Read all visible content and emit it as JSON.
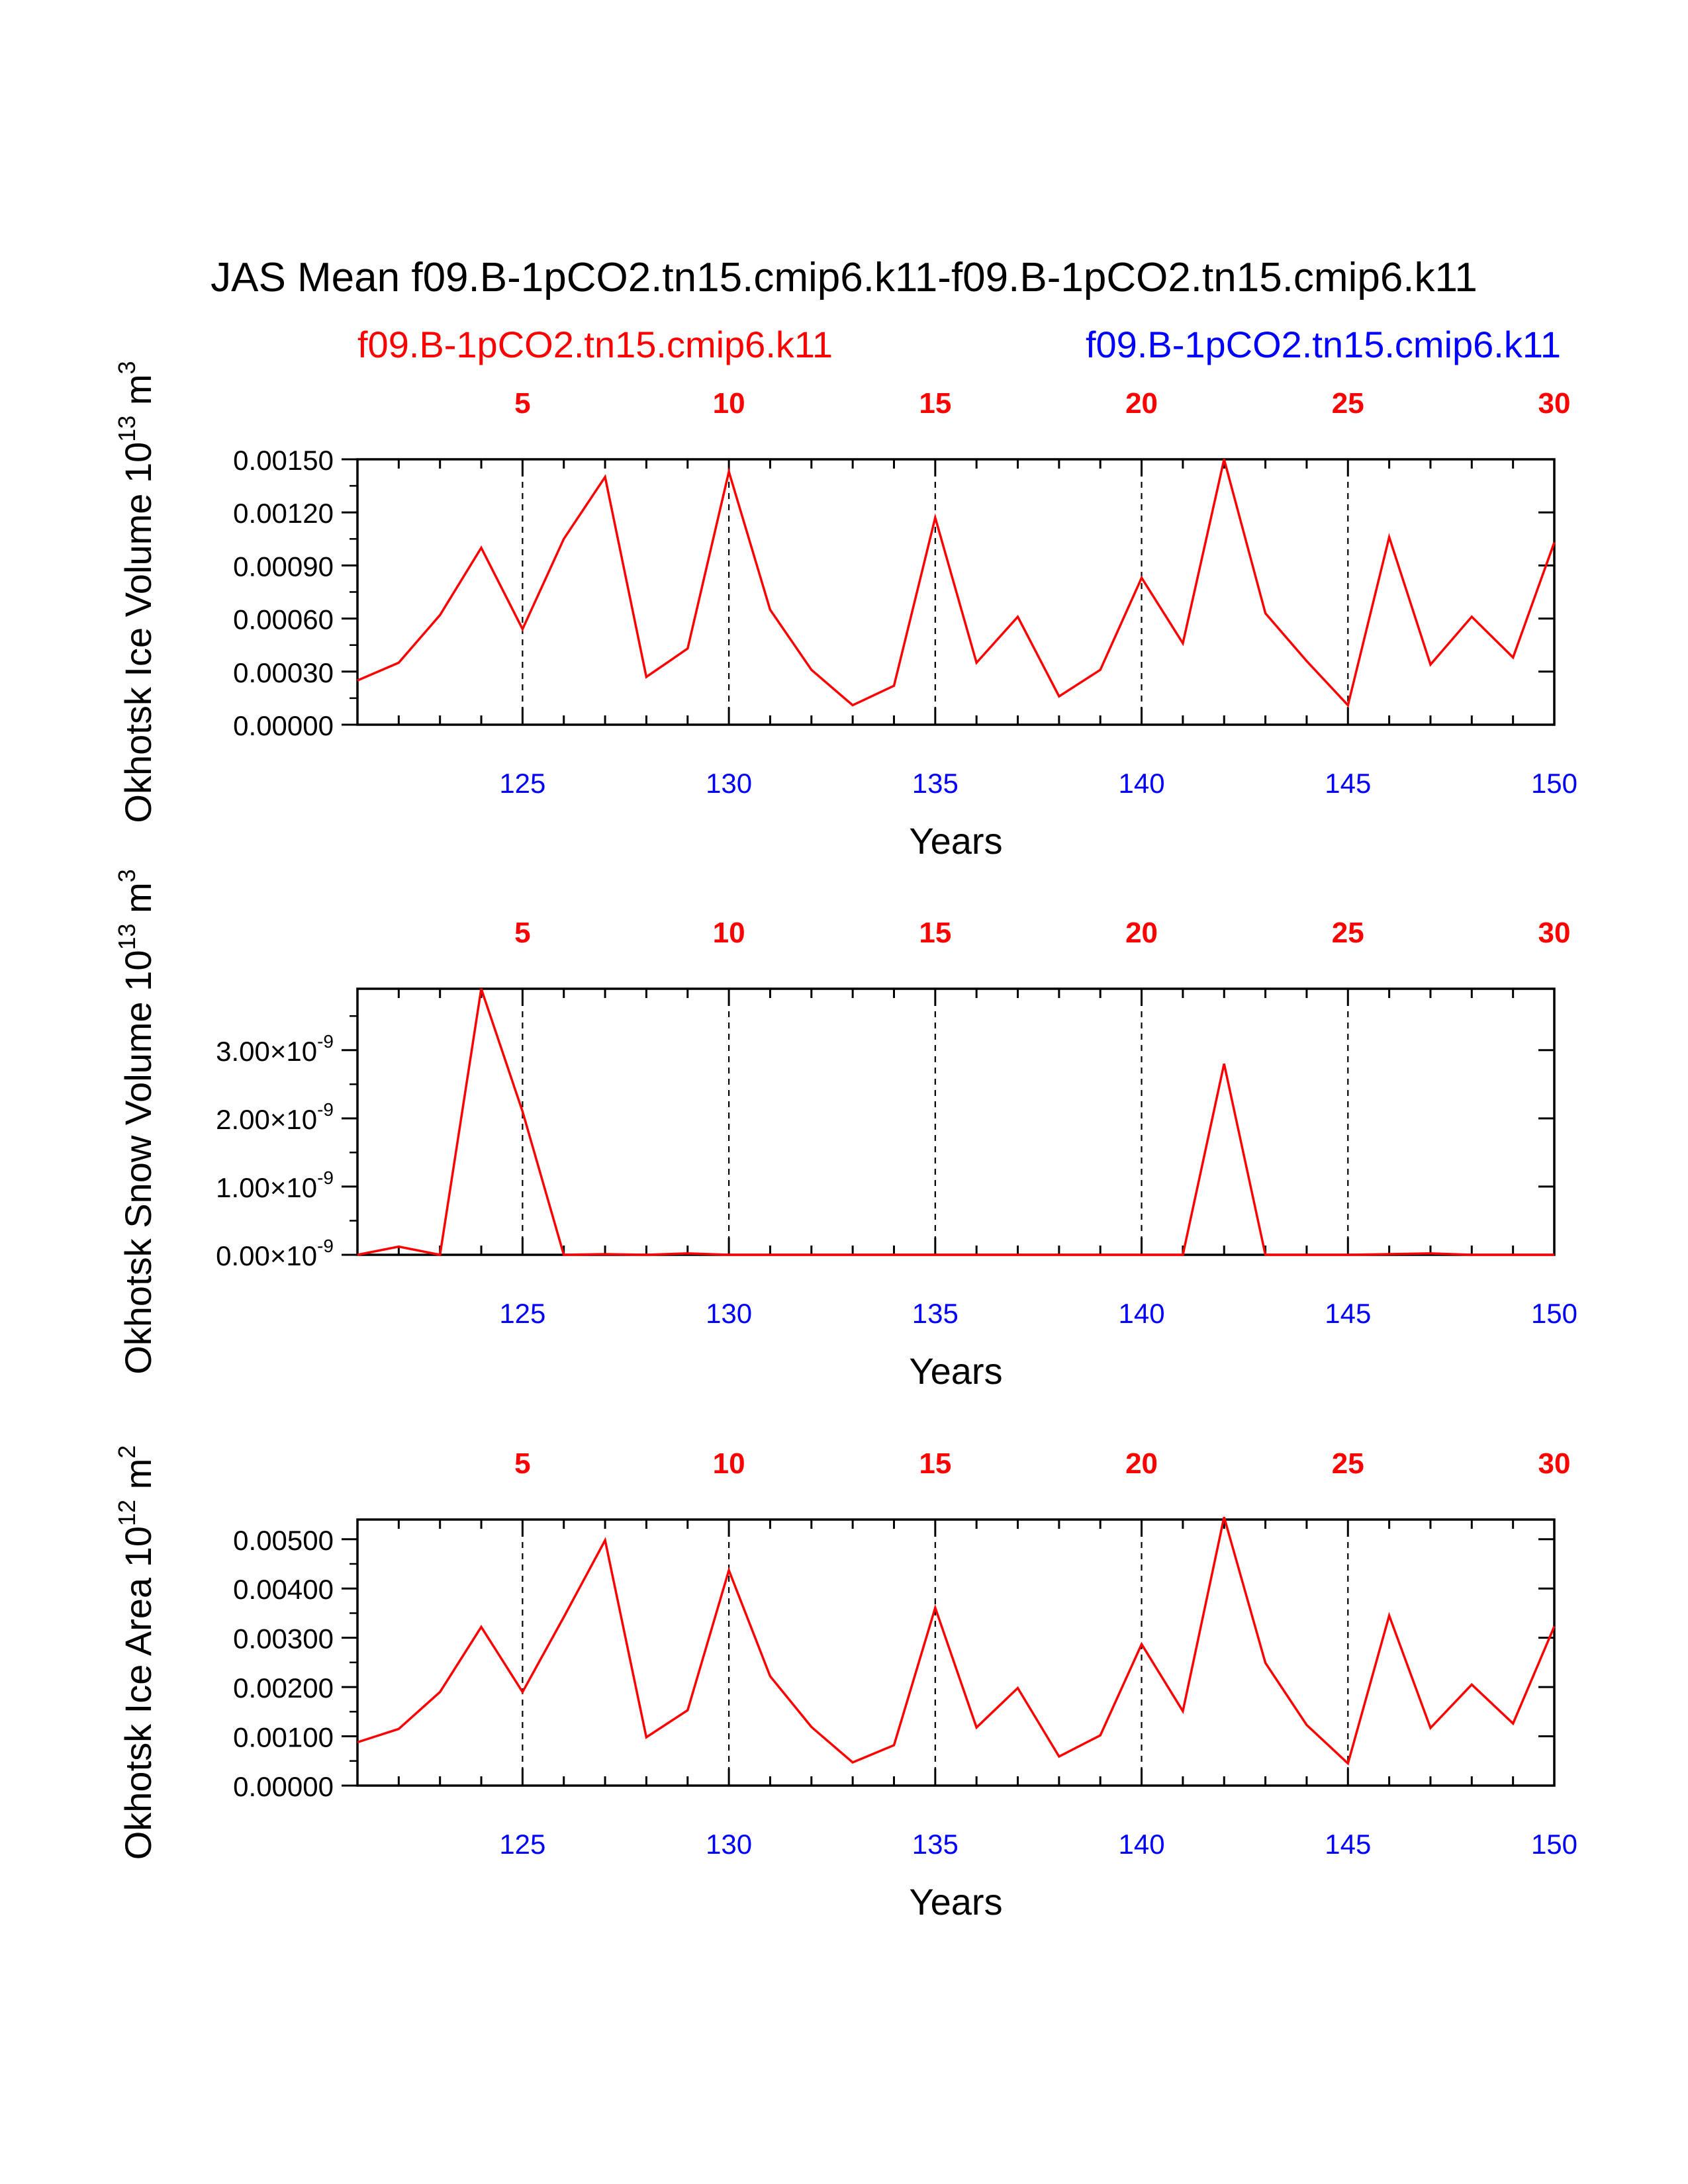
{
  "title": "JAS Mean f09.B-1pCO2.tn15.cmip6.k11-f09.B-1pCO2.tn15.cmip6.k11",
  "case_left": "f09.B-1pCO2.tn15.cmip6.k11",
  "case_right": "f09.B-1pCO2.tn15.cmip6.k11",
  "colors": {
    "series": "#ff0000",
    "top_axis": "#ff0000",
    "bottom_axis": "#0000ff",
    "text": "#000000"
  },
  "chart_data": [
    {
      "type": "line",
      "id": "ice-volume",
      "ylabel": "Okhotsk Ice Volume",
      "yunit_base": "10",
      "yunit_exp": "13",
      "yunit_unit": "m",
      "yunit_unit_exp": "3",
      "xlabel": "Years",
      "x": [
        121,
        122,
        123,
        124,
        125,
        126,
        127,
        128,
        129,
        130,
        131,
        132,
        133,
        134,
        135,
        136,
        137,
        138,
        139,
        140,
        141,
        142,
        143,
        144,
        145,
        146,
        147,
        148,
        149,
        150
      ],
      "values": [
        0.00025,
        0.00035,
        0.00062,
        0.001,
        0.00054,
        0.00105,
        0.0014,
        0.00027,
        0.00043,
        0.00143,
        0.00065,
        0.00031,
        0.00011,
        0.00022,
        0.00117,
        0.00035,
        0.00061,
        0.00016,
        0.00031,
        0.00083,
        0.00046,
        0.0015,
        0.00063,
        0.00036,
        0.00011,
        0.00106,
        0.00034,
        0.00061,
        0.00038,
        0.00103
      ],
      "xlim": [
        121,
        150
      ],
      "ylim": [
        0,
        0.0015
      ],
      "yticks": [
        0,
        0.0003,
        0.0006,
        0.0009,
        0.0012,
        0.0015
      ],
      "ytick_labels": [
        "0.00000",
        "0.00030",
        "0.00060",
        "0.00090",
        "0.00120",
        "0.00150"
      ],
      "xticks_bottom": [
        125,
        130,
        135,
        140,
        145,
        150
      ],
      "xtick_labels_bottom": [
        "125",
        "130",
        "135",
        "140",
        "145",
        "150"
      ],
      "xticks_top_labels": [
        "5",
        "10",
        "15",
        "20",
        "25",
        "30"
      ]
    },
    {
      "type": "line",
      "id": "snow-volume",
      "ylabel": "Okhotsk Snow Volume",
      "yunit_base": "10",
      "yunit_exp": "13",
      "yunit_unit": "m",
      "yunit_unit_exp": "3",
      "xlabel": "Years",
      "x": [
        121,
        122,
        123,
        124,
        125,
        126,
        127,
        128,
        129,
        130,
        131,
        132,
        133,
        134,
        135,
        136,
        137,
        138,
        139,
        140,
        141,
        142,
        143,
        144,
        145,
        146,
        147,
        148,
        149,
        150
      ],
      "values": [
        0.0,
        1.2e-10,
        0.0,
        3.9e-09,
        2.1e-09,
        0.0,
        1e-11,
        0.0,
        2e-11,
        0.0,
        0.0,
        0.0,
        0.0,
        0.0,
        0.0,
        0.0,
        0.0,
        0.0,
        0.0,
        0.0,
        0.0,
        2.8e-09,
        0.0,
        0.0,
        0.0,
        1e-11,
        2e-11,
        0.0,
        0.0,
        0.0
      ],
      "xlim": [
        121,
        150
      ],
      "ylim": [
        0,
        3.9e-09
      ],
      "yticks": [
        0,
        1e-09,
        2e-09,
        3e-09
      ],
      "ytick_labels": [
        {
          "mantissa": "0.00",
          "power": "-9"
        },
        {
          "mantissa": "1.00",
          "power": "-9"
        },
        {
          "mantissa": "2.00",
          "power": "-9"
        },
        {
          "mantissa": "3.00",
          "power": "-9"
        }
      ],
      "ytick_times": "×10",
      "xticks_bottom": [
        125,
        130,
        135,
        140,
        145,
        150
      ],
      "xtick_labels_bottom": [
        "125",
        "130",
        "135",
        "140",
        "145",
        "150"
      ],
      "xticks_top_labels": [
        "5",
        "10",
        "15",
        "20",
        "25",
        "30"
      ]
    },
    {
      "type": "line",
      "id": "ice-area",
      "ylabel": "Okhotsk Ice Area",
      "yunit_base": "10",
      "yunit_exp": "12",
      "yunit_unit": "m",
      "yunit_unit_exp": "2",
      "xlabel": "Years",
      "x": [
        121,
        122,
        123,
        124,
        125,
        126,
        127,
        128,
        129,
        130,
        131,
        132,
        133,
        134,
        135,
        136,
        137,
        138,
        139,
        140,
        141,
        142,
        143,
        144,
        145,
        146,
        147,
        148,
        149,
        150
      ],
      "values": [
        0.00088,
        0.00115,
        0.0019,
        0.00322,
        0.0019,
        0.00342,
        0.00498,
        0.00098,
        0.00153,
        0.00437,
        0.00222,
        0.00119,
        0.00047,
        0.00082,
        0.00361,
        0.00118,
        0.00198,
        0.00059,
        0.00102,
        0.00287,
        0.00151,
        0.00545,
        0.00249,
        0.00123,
        0.00045,
        0.00345,
        0.00117,
        0.00205,
        0.00126,
        0.00323
      ],
      "xlim": [
        121,
        150
      ],
      "ylim": [
        0,
        0.0054
      ],
      "yticks": [
        0,
        0.001,
        0.002,
        0.003,
        0.004,
        0.005
      ],
      "ytick_labels": [
        "0.00000",
        "0.00100",
        "0.00200",
        "0.00300",
        "0.00400",
        "0.00500"
      ],
      "xticks_bottom": [
        125,
        130,
        135,
        140,
        145,
        150
      ],
      "xtick_labels_bottom": [
        "125",
        "130",
        "135",
        "140",
        "145",
        "150"
      ],
      "xticks_top_labels": [
        "5",
        "10",
        "15",
        "20",
        "25",
        "30"
      ]
    }
  ]
}
